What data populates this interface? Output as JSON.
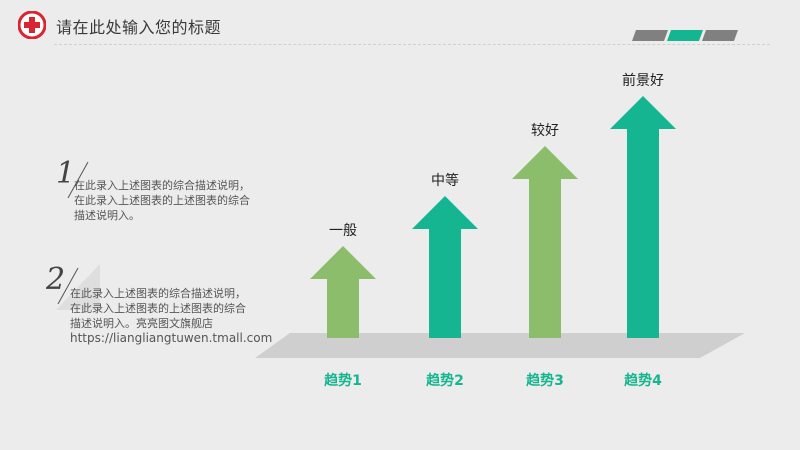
{
  "header": {
    "title": "请在此处输入您的标题"
  },
  "blocks": [
    {
      "num": "1",
      "lines": [
        "在此录入上述图表的综合描述说明，",
        "在此录入上述图表的上述图表的综合",
        "描述说明入。"
      ]
    },
    {
      "num": "2",
      "lines": [
        "在此录入上述图表的综合描述说明，",
        "在此录入上述图表的上述图表的综合",
        "描述说明入。亮亮图文旗舰店",
        "https://liangliangtuwen.tmall.com"
      ]
    }
  ],
  "colors": {
    "accent": "#16b591",
    "green": "#8bbd6a",
    "gray": "#808080",
    "logo_red": "#d9252f"
  },
  "chart_data": {
    "type": "bar",
    "categories": [
      "趋势1",
      "趋势2",
      "趋势3",
      "趋势4"
    ],
    "labels": [
      "一般",
      "中等",
      "较好",
      "前景好"
    ],
    "values": [
      1,
      2,
      3,
      4
    ],
    "colors": [
      "#8bbd6a",
      "#16b591",
      "#8bbd6a",
      "#16b591"
    ]
  }
}
